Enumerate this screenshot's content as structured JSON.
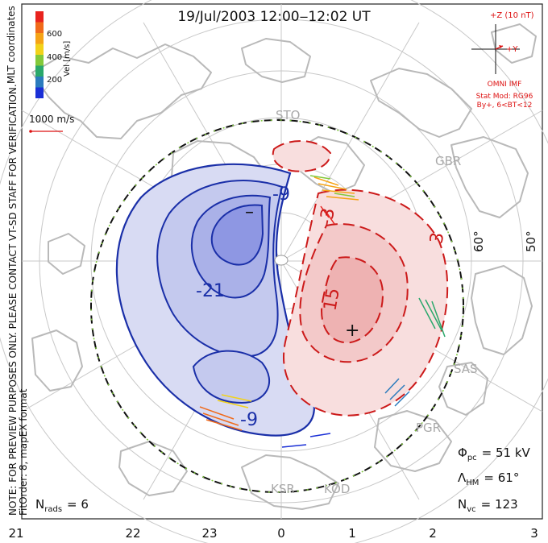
{
  "header": {
    "title": "19/Jul/2003 12:00‒12:02 UT"
  },
  "colorbar": {
    "label": "Vel [m/s]",
    "ticks": [
      "600",
      "400",
      "200"
    ],
    "colors": [
      "#e8231e",
      "#f06a1a",
      "#f5a316",
      "#f2d21a",
      "#83c93a",
      "#2aa86b",
      "#2b7bbd",
      "#1a2fd6"
    ]
  },
  "side_labels": {
    "coords": "MLT coordinates",
    "note": "NOTE: FOR PREVIEW PURPOSES ONLY. PLEASE CONTACT VT-SD STAFF FOR VERIFICATION.",
    "fit": "FitOrder: 8,  mapEX format"
  },
  "scale_vector": {
    "label": "1000 m/s"
  },
  "imf": {
    "z_label": "+Z (10 nT)",
    "y_label": "+Y",
    "source": "OMNI IMF",
    "model_line1": "Stat Mod: RG96",
    "model_line2": "By+, 6<BT<12"
  },
  "stats": {
    "phi_sym": "Φ",
    "phi_sub": "pc",
    "phi_val": "= 51 kV",
    "lam_sym": "Λ",
    "lam_sub": "HM",
    "lam_val": "= 61°",
    "nvc_sym": "N",
    "nvc_sub": "vc",
    "nvc_val": "= 123",
    "nrads_sym": "N",
    "nrads_sub": "rads",
    "nrads_val": "= 6"
  },
  "latitude_labels": [
    "60°",
    "50°"
  ],
  "mlt_axis": [
    "21",
    "22",
    "23",
    "0",
    "1",
    "2",
    "3"
  ],
  "stations": [
    "STO",
    "GBR",
    "SAS",
    "PGR",
    "KSR",
    "KOD"
  ],
  "contour_labels": [
    "-9",
    "-21",
    "-9",
    "-3",
    "3",
    "15"
  ],
  "extrema_marks": [
    "–",
    "+"
  ],
  "colors": {
    "negative_contour": "#1a2fa8",
    "positive_contour": "#cc1a1a",
    "negative_fill": "#d8dbf3",
    "positive_fill": "#f8dede",
    "hmb": "#111111",
    "land": "#b9b9b9"
  }
}
